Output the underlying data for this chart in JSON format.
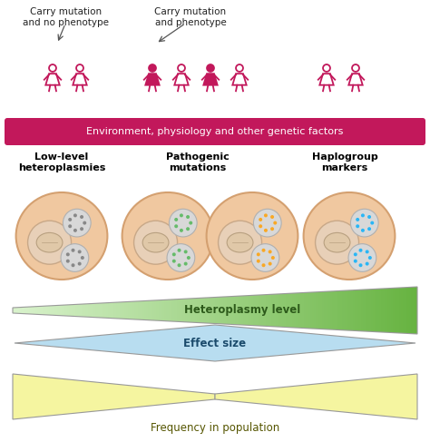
{
  "bg_color": "#ffffff",
  "pink": "#c2185b",
  "pink_fill": "#c2185b",
  "pink_outline": "#c2185b",
  "banner_color": "#c2185b",
  "banner_text": "Environment, physiology and other genetic factors",
  "label1": "Carry mutation\nand no phenotype",
  "label2": "Carry mutation\nand phenotype",
  "cell_label1": "Low-level\nheteroplasmies",
  "cell_label2": "Pathogenic\nmutations",
  "cell_label3": "Haplogroup\nmarkers",
  "arrow1_label": "Heteroplasmy level",
  "arrow2_label": "Effect size",
  "arrow3_label": "Frequency in population",
  "cell_outer_fill": "#f0c8a0",
  "cell_outer_edge": "#d4a070",
  "cell_nucleus_fill": "#e8d0b8",
  "cell_nucleus_edge": "#c8a888",
  "cell_organelle_fill": "#d8d8d8",
  "cell_organelle_edge": "#b0b0b0",
  "dot_gray": "#888888",
  "dot_green": "#66bb6a",
  "dot_yellow": "#f9a825",
  "dot_blue": "#29b6f6",
  "green_tri_light": "#d4edda",
  "green_tri_dark": "#4caf50",
  "blue_diamond": "#b8ddf0",
  "yellow_bowtie": "#f5f5a0",
  "shape_edge": "#999999"
}
